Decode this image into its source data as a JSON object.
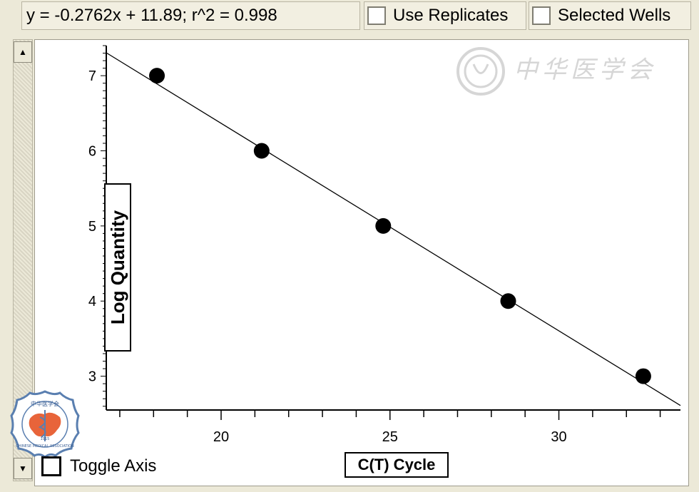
{
  "toolbar": {
    "equation": "y = -0.2762x + 11.89;  r^2 = 0.998",
    "use_replicates_label": "Use Replicates",
    "selected_wells_label": "Selected Wells"
  },
  "controls": {
    "toggle_axis_label": "Toggle Axis"
  },
  "watermark": {
    "text": "中华医学会"
  },
  "logo": {
    "text_cn": "中华医学会",
    "text_en": "CHINESE MEDICAL ASSOCIATION",
    "year": "1915",
    "color": "#e8643a"
  },
  "chart_data": {
    "type": "scatter",
    "title": "",
    "xlabel": "C(T) Cycle",
    "ylabel": "Log Quantity",
    "xlim": [
      16.6,
      33.6
    ],
    "ylim": [
      2.55,
      7.4
    ],
    "xticks": [
      20,
      25,
      30
    ],
    "yticks": [
      3,
      4,
      5,
      6,
      7
    ],
    "points": [
      {
        "x": 18.1,
        "y": 7
      },
      {
        "x": 21.2,
        "y": 6
      },
      {
        "x": 24.8,
        "y": 5
      },
      {
        "x": 28.5,
        "y": 4
      },
      {
        "x": 32.5,
        "y": 3
      }
    ],
    "fit": {
      "slope": -0.2762,
      "intercept": 11.89,
      "r2": 0.998
    },
    "grid": false
  }
}
